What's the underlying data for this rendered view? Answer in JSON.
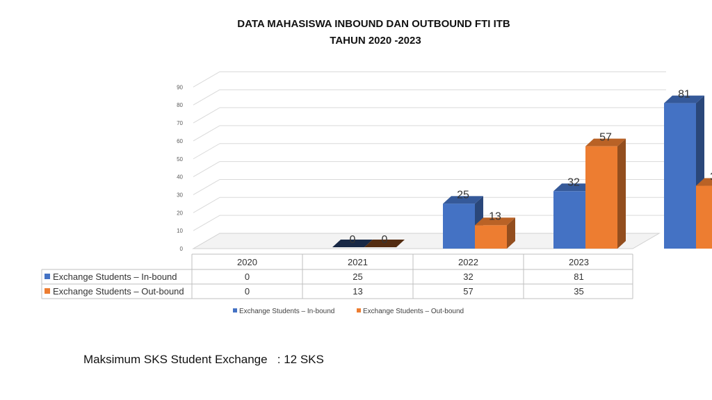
{
  "title_line1": "DATA MAHASISWA INBOUND DAN OUTBOUND  FTI ITB",
  "title_line2": "TAHUN 2020 -2023",
  "chart_data": {
    "type": "bar",
    "style": "3d-clustered-column-with-data-table",
    "categories": [
      "2020",
      "2021",
      "2022",
      "2023"
    ],
    "series": [
      {
        "name": "Exchange Students – In-bound",
        "values": [
          0,
          25,
          32,
          81
        ],
        "color": "#4472C4"
      },
      {
        "name": "Exchange Students – Out-bound",
        "values": [
          0,
          13,
          57,
          35
        ],
        "color": "#ED7D31"
      }
    ],
    "ylim": [
      0,
      90
    ],
    "yticks": [
      "0",
      "10",
      "20",
      "30",
      "40",
      "50",
      "60",
      "70",
      "80",
      "90"
    ],
    "grid": true,
    "legend_position": "bottom",
    "legend_labels": [
      "Exchange Students – In-bound",
      "Exchange Students – Out-bound"
    ]
  },
  "note": {
    "label": "Maksimum SKS Student Exchange",
    "separator": "   : ",
    "value": "12 SKS"
  }
}
